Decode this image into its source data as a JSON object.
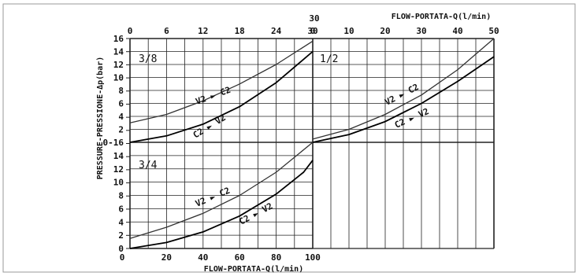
{
  "chart_data": {
    "type": "line",
    "grid": true,
    "y_axis": {
      "label": "PRESSURE-PRESSIONE-Δp(bar)",
      "upper_ticks": [
        "16",
        "14",
        "12",
        "10",
        "8",
        "6",
        "4",
        "2",
        "0-16"
      ],
      "lower_ticks": [
        "14",
        "12",
        "10",
        "8",
        "6",
        "4",
        "2",
        "0"
      ],
      "range": [
        0,
        16
      ]
    },
    "bottom_axis": {
      "label": "FLOW-PORTATA-Q(l/min)",
      "ticks": [
        "20",
        "40",
        "60",
        "80",
        "100"
      ],
      "range": [
        0,
        100
      ]
    },
    "top_left_axis": {
      "ticks": [
        "0",
        "6",
        "12",
        "18",
        "24",
        "30"
      ],
      "range": [
        0,
        30
      ]
    },
    "top_right_axis": {
      "label": "FLOW-PORTATA-Q(l/min)",
      "ticks": [
        "0",
        "10",
        "20",
        "30",
        "40",
        "50"
      ],
      "first_tick_overlap": "30",
      "range": [
        0,
        50
      ]
    },
    "panels": [
      {
        "id": "p38",
        "title": "3/8",
        "x_range": [
          0,
          30
        ],
        "y_range": [
          0,
          16
        ],
        "series": [
          {
            "label": "V2 ► C2",
            "x": [
              0,
              6,
              12,
              18,
              24,
              30
            ],
            "y": [
              3.0,
              4.3,
              6.4,
              9.0,
              12.0,
              15.6
            ]
          },
          {
            "label": "C2 ► V2",
            "x": [
              0,
              6,
              12,
              18,
              24,
              30
            ],
            "y": [
              0.0,
              1.0,
              2.8,
              5.5,
              9.2,
              14.0
            ]
          }
        ]
      },
      {
        "id": "p34",
        "title": "3/4",
        "x_range": [
          0,
          100
        ],
        "y_range": [
          0,
          16
        ],
        "series": [
          {
            "label": "V2 ► C2",
            "x": [
              0,
              20,
              40,
              60,
              80,
              100
            ],
            "y": [
              1.5,
              3.2,
              5.3,
              8.0,
              11.5,
              16.0
            ]
          },
          {
            "label": "C2 ► V2",
            "x": [
              0,
              20,
              40,
              60,
              80,
              95,
              100
            ],
            "y": [
              0.0,
              0.9,
              2.5,
              4.9,
              8.2,
              11.5,
              13.3
            ]
          }
        ]
      },
      {
        "id": "p12",
        "title": "1/2",
        "x_range": [
          0,
          50
        ],
        "y_range": [
          0,
          16
        ],
        "series": [
          {
            "label": "V2 ► C2",
            "x": [
              0,
              10,
              20,
              30,
              40,
              50
            ],
            "y": [
              0.5,
              2.0,
              4.3,
              7.3,
              11.2,
              16.0
            ]
          },
          {
            "label": "C2 ► V2",
            "x": [
              0,
              10,
              20,
              30,
              40,
              50
            ],
            "y": [
              0.0,
              1.2,
              3.2,
              6.0,
              9.4,
              13.2
            ]
          }
        ]
      }
    ]
  }
}
